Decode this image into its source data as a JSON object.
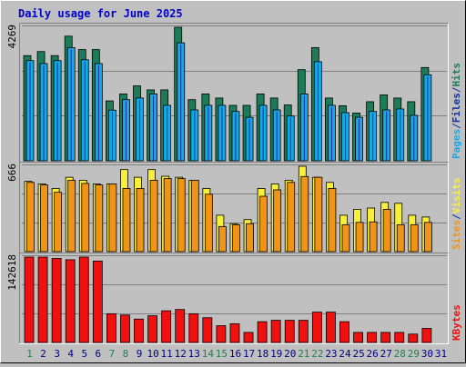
{
  "chart_data": {
    "type": "bar",
    "title": "Daily usage for June 2025",
    "categories": [
      "1",
      "2",
      "3",
      "4",
      "5",
      "6",
      "7",
      "8",
      "9",
      "10",
      "11",
      "12",
      "13",
      "14",
      "15",
      "16",
      "17",
      "18",
      "19",
      "20",
      "21",
      "22",
      "23",
      "24",
      "25",
      "26",
      "27",
      "28",
      "29",
      "30",
      "31"
    ],
    "weekend_days": [
      "1",
      "7",
      "8",
      "14",
      "15",
      "21",
      "22",
      "28",
      "29"
    ],
    "colors": {
      "title": "#0000cc",
      "background": "#c0c0c0",
      "plot_background": "#c0c0c0",
      "hits": "#1c7c5a",
      "files": "#17a8e8",
      "pages": "#1030a0",
      "visits": "#f8f038",
      "sites": "#f09418",
      "kbytes": "#f01010",
      "weekday_label": "#000080",
      "weekend_label": "#208050"
    },
    "panels": [
      {
        "max_label": "4269",
        "ymax": 4269,
        "legend": [
          {
            "name": "Pages",
            "color": "#17a8e8"
          },
          {
            "name": "/",
            "color": "#1030a0"
          },
          {
            "name": "Files",
            "color": "#1030a0"
          },
          {
            "name": "/",
            "color": "#1030a0"
          },
          {
            "name": "Hits",
            "color": "#1c7c5a"
          }
        ],
        "series": [
          {
            "name": "Hits",
            "values": [
              3362,
              3492,
              3362,
              3984,
              3555,
              3555,
              1915,
              2138,
              2396,
              2267,
              2267,
              4269,
              1954,
              2138,
              2007,
              1772,
              1772,
              2138,
              2007,
              1786,
              2914,
              3620,
              2007,
              1761,
              1527,
              1889,
              2107,
              2007,
              1889,
              2982,
              null
            ]
          },
          {
            "name": "Files",
            "values": [
              3202,
              3107,
              3202,
              3619,
              3229,
              3107,
              1619,
              1954,
              2007,
              2138,
              1772,
              3771,
              1626,
              1772,
              1772,
              1577,
              1390,
              1772,
              1626,
              1429,
              2138,
              3167,
              1772,
              1538,
              1390,
              1577,
              1626,
              1656,
              1452,
              2750,
              null
            ]
          },
          {
            "name": "Pages",
            "values": [
              3203,
              3107,
              3203,
              3619,
              3230,
              3107,
              1629,
              1954,
              2006,
              2138,
              1775,
              3771,
              1629,
              1773,
              1773,
              1580,
              1393,
              1773,
              1629,
              1432,
              2138,
              3168,
              1775,
              1539,
              1393,
              1580,
              1629,
              1659,
              1454,
              2751,
              null
            ]
          }
        ]
      },
      {
        "max_label": "666",
        "ymax": 666,
        "legend": [
          {
            "name": "Sites",
            "color": "#f09418"
          },
          {
            "name": "/",
            "color": "#1030a0"
          },
          {
            "name": "Visits",
            "color": "#f8f038"
          }
        ],
        "series": [
          {
            "name": "Visits",
            "values": [
              548,
              528,
              493,
              580,
              557,
              528,
              528,
              640,
              580,
              640,
              588,
              580,
              557,
              493,
              284,
              218,
              250,
              493,
              528,
              557,
              666,
              580,
              540,
              284,
              330,
              340,
              384,
              377,
              284,
              270,
              null
            ]
          },
          {
            "name": "Sites",
            "values": [
              540,
              520,
              463,
              557,
              532,
              520,
              528,
              493,
              493,
              557,
              570,
              570,
              557,
              448,
              196,
              210,
              218,
              432,
              482,
              540,
              586,
              580,
              493,
              210,
              228,
              232,
              330,
              210,
              210,
              228,
              null
            ]
          }
        ]
      },
      {
        "max_label": "142618",
        "ymax": 142618,
        "legend": [
          {
            "name": "KBytes",
            "color": "#f01010"
          }
        ],
        "series": [
          {
            "name": "KBytes",
            "values": [
              142618,
              142618,
              140400,
              138200,
              142618,
              136000,
              48000,
              45800,
              39100,
              44600,
              52900,
              55100,
              48000,
              41300,
              28000,
              31300,
              16800,
              34700,
              37000,
              37000,
              37000,
              50700,
              50700,
              34700,
              16800,
              16800,
              16800,
              16800,
              14000,
              23500,
              null
            ]
          }
        ]
      }
    ]
  }
}
